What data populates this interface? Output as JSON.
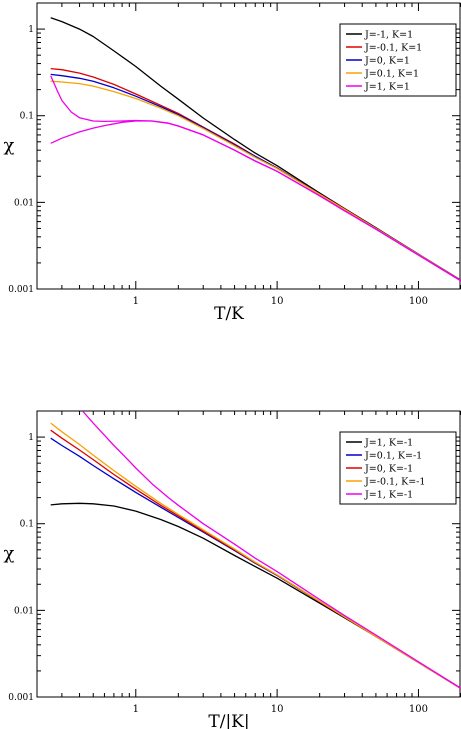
{
  "chart_data": [
    {
      "type": "line",
      "xlabel": "T/K",
      "ylabel": "χ",
      "x_scale": "log",
      "y_scale": "log",
      "xlim": [
        0.2,
        200
      ],
      "ylim": [
        0.001,
        2
      ],
      "x_ticks": [
        1,
        10,
        100
      ],
      "x_tick_labels": [
        "1",
        "10",
        "100"
      ],
      "y_ticks": [
        0.001,
        0.01,
        0.1,
        1
      ],
      "y_tick_labels": [
        "0.001",
        "0.01",
        "0.1",
        "1"
      ],
      "legend_position": "top-right",
      "series": [
        {
          "name": "J=-1, K=1",
          "color": "#000000",
          "x": [
            0.25,
            0.3,
            0.4,
            0.5,
            0.7,
            1,
            1.5,
            2,
            3,
            5,
            7,
            10,
            20,
            30,
            50,
            100,
            200
          ],
          "y": [
            1.35,
            1.22,
            1.0,
            0.82,
            0.56,
            0.37,
            0.22,
            0.155,
            0.094,
            0.053,
            0.037,
            0.0265,
            0.0128,
            0.0085,
            0.0051,
            0.00252,
            0.00126
          ]
        },
        {
          "name": "J=-0.1, K=1",
          "color": "#dd0000",
          "x": [
            0.25,
            0.3,
            0.4,
            0.5,
            0.7,
            1,
            1.5,
            2,
            3,
            5,
            7,
            10,
            20,
            30,
            50,
            100,
            200
          ],
          "y": [
            0.35,
            0.34,
            0.31,
            0.28,
            0.23,
            0.178,
            0.132,
            0.106,
            0.074,
            0.047,
            0.034,
            0.025,
            0.0125,
            0.0084,
            0.005,
            0.0025,
            0.00125
          ]
        },
        {
          "name": "J=0, K=1",
          "color": "#0000cc",
          "x": [
            0.25,
            0.3,
            0.4,
            0.5,
            0.7,
            1,
            1.5,
            2,
            3,
            5,
            7,
            10,
            20,
            30,
            50,
            100,
            200
          ],
          "y": [
            0.3,
            0.29,
            0.27,
            0.25,
            0.21,
            0.168,
            0.127,
            0.103,
            0.073,
            0.046,
            0.034,
            0.0248,
            0.0125,
            0.0083,
            0.005,
            0.0025,
            0.00125
          ]
        },
        {
          "name": "J=0.1, K=1",
          "color": "#f5a300",
          "x": [
            0.25,
            0.3,
            0.4,
            0.5,
            0.7,
            1,
            1.5,
            2,
            3,
            5,
            7,
            10,
            20,
            30,
            50,
            100,
            200
          ],
          "y": [
            0.25,
            0.245,
            0.235,
            0.22,
            0.19,
            0.158,
            0.122,
            0.1,
            0.071,
            0.045,
            0.033,
            0.0245,
            0.0124,
            0.0083,
            0.005,
            0.0025,
            0.00125
          ]
        },
        {
          "name": "J=1, K=1",
          "color": "#ee00ee",
          "x": [
            0.25,
            0.28,
            0.3,
            0.35,
            0.4,
            0.5,
            0.6,
            0.8,
            1,
            1.3,
            1.7,
            2,
            3,
            5,
            7,
            10,
            20,
            30,
            50,
            100,
            200
          ],
          "y": [
            0.29,
            0.19,
            0.15,
            0.11,
            0.095,
            0.087,
            0.086,
            0.087,
            0.088,
            0.087,
            0.082,
            0.076,
            0.06,
            0.04,
            0.03,
            0.0228,
            0.0119,
            0.008,
            0.0049,
            0.00246,
            0.00124
          ]
        },
        {
          "name": "",
          "color": "#ee00ee",
          "x": [
            0.25,
            0.3,
            0.4,
            0.5,
            0.6,
            0.8,
            1,
            1.3,
            1.7,
            2,
            3,
            5,
            7,
            10,
            20,
            30,
            50,
            100,
            200
          ],
          "y": [
            0.048,
            0.055,
            0.065,
            0.072,
            0.077,
            0.084,
            0.087,
            0.087,
            0.082,
            0.076,
            0.06,
            0.04,
            0.03,
            0.0228,
            0.0119,
            0.008,
            0.0049,
            0.00246,
            0.00124
          ]
        }
      ]
    },
    {
      "type": "line",
      "xlabel": "T/|K|",
      "ylabel": "χ",
      "x_scale": "log",
      "y_scale": "log",
      "xlim": [
        0.2,
        200
      ],
      "ylim": [
        0.001,
        2
      ],
      "x_ticks": [
        1,
        10,
        100
      ],
      "x_tick_labels": [
        "1",
        "10",
        "100"
      ],
      "y_ticks": [
        0.001,
        0.01,
        0.1,
        1
      ],
      "y_tick_labels": [
        "0.001",
        "0.01",
        "0.1",
        "1"
      ],
      "legend_position": "top-right",
      "series": [
        {
          "name": "J=1, K=-1",
          "color": "#000000",
          "x": [
            0.25,
            0.3,
            0.4,
            0.5,
            0.7,
            1,
            1.5,
            2,
            3,
            5,
            7,
            10,
            20,
            30,
            50,
            100,
            200
          ],
          "y": [
            0.165,
            0.17,
            0.172,
            0.17,
            0.16,
            0.14,
            0.112,
            0.093,
            0.068,
            0.043,
            0.032,
            0.0235,
            0.0121,
            0.0082,
            0.005,
            0.0025,
            0.00125
          ]
        },
        {
          "name": "J=0.1, K=-1",
          "color": "#0000cc",
          "x": [
            0.25,
            0.3,
            0.4,
            0.5,
            0.7,
            1,
            1.5,
            2,
            3,
            5,
            7,
            10,
            20,
            30,
            50,
            100,
            200
          ],
          "y": [
            0.97,
            0.8,
            0.6,
            0.47,
            0.33,
            0.23,
            0.155,
            0.118,
            0.08,
            0.049,
            0.035,
            0.0253,
            0.0126,
            0.0084,
            0.005,
            0.0025,
            0.00125
          ]
        },
        {
          "name": "J=0, K=-1",
          "color": "#dd0000",
          "x": [
            0.25,
            0.3,
            0.4,
            0.5,
            0.7,
            1,
            1.5,
            2,
            3,
            5,
            7,
            10,
            20,
            30,
            50,
            100,
            200
          ],
          "y": [
            1.2,
            0.97,
            0.71,
            0.55,
            0.37,
            0.25,
            0.163,
            0.123,
            0.082,
            0.05,
            0.0355,
            0.0255,
            0.0126,
            0.0084,
            0.005,
            0.0025,
            0.00125
          ]
        },
        {
          "name": "J=-0.1, K=-1",
          "color": "#f5a300",
          "x": [
            0.25,
            0.3,
            0.4,
            0.5,
            0.7,
            1,
            1.5,
            2,
            3,
            5,
            7,
            10,
            20,
            30,
            50,
            100,
            200
          ],
          "y": [
            1.45,
            1.15,
            0.82,
            0.62,
            0.41,
            0.27,
            0.172,
            0.128,
            0.085,
            0.051,
            0.036,
            0.0257,
            0.0127,
            0.0084,
            0.005,
            0.0025,
            0.00125
          ]
        },
        {
          "name": "J=1, K=-1",
          "color": "#ee00ee",
          "x": [
            0.42,
            0.5,
            0.6,
            0.7,
            0.85,
            1,
            1.3,
            1.7,
            2,
            3,
            5,
            7,
            10,
            20,
            30,
            50,
            100,
            200
          ],
          "y": [
            2.0,
            1.45,
            1.05,
            0.8,
            0.58,
            0.44,
            0.29,
            0.2,
            0.163,
            0.1,
            0.058,
            0.04,
            0.028,
            0.0133,
            0.0087,
            0.0052,
            0.00255,
            0.00126
          ]
        }
      ]
    }
  ]
}
